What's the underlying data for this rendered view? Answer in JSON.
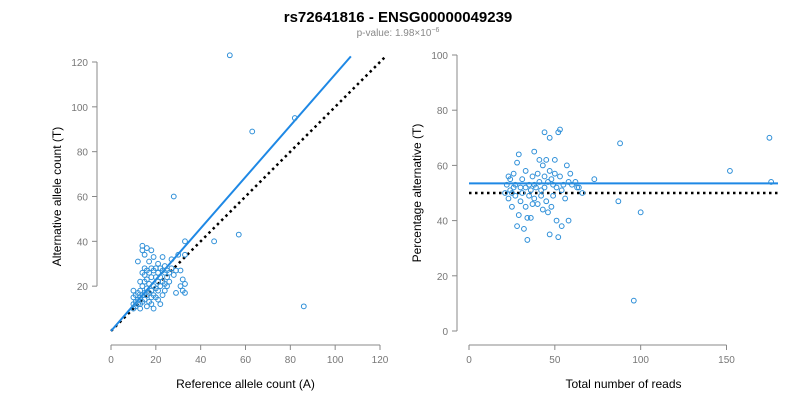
{
  "figure": {
    "title": "rs72641816 - ENSG00000049239",
    "subtitle_prefix": "p-value: 1.98×10",
    "subtitle_exponent": "−6"
  },
  "colors": {
    "points": "#2e8fd8",
    "fit_line": "#1e88e5",
    "reference_line": "#000000"
  },
  "chart_data": [
    {
      "type": "scatter",
      "xlabel": "Reference allele count (A)",
      "ylabel": "Alternative allele count (T)",
      "xlim": [
        0,
        120
      ],
      "ylim": [
        0,
        120
      ],
      "xticks": [
        0,
        20,
        40,
        60,
        80,
        100,
        120
      ],
      "yticks": [
        20,
        40,
        60,
        80,
        100,
        120
      ],
      "fit_line": [
        [
          0,
          0
        ],
        [
          107,
          122.5
        ]
      ],
      "reference_line": [
        [
          0,
          0
        ],
        [
          122,
          122
        ]
      ],
      "points": [
        [
          10,
          10
        ],
        [
          10,
          12
        ],
        [
          11,
          11
        ],
        [
          11,
          13
        ],
        [
          10,
          15
        ],
        [
          11,
          16
        ],
        [
          10,
          18
        ],
        [
          12,
          12
        ],
        [
          12,
          14
        ],
        [
          12,
          17
        ],
        [
          13,
          10
        ],
        [
          13,
          12
        ],
        [
          13,
          15
        ],
        [
          13,
          18
        ],
        [
          13,
          22
        ],
        [
          12,
          31
        ],
        [
          14,
          13
        ],
        [
          14,
          16
        ],
        [
          14,
          20
        ],
        [
          14,
          26
        ],
        [
          14,
          36
        ],
        [
          14,
          38
        ],
        [
          15,
          14
        ],
        [
          15,
          17
        ],
        [
          15,
          22
        ],
        [
          15,
          25
        ],
        [
          15,
          28
        ],
        [
          15,
          34
        ],
        [
          16,
          11
        ],
        [
          16,
          16
        ],
        [
          16,
          19
        ],
        [
          16,
          23
        ],
        [
          16,
          27
        ],
        [
          16,
          37
        ],
        [
          17,
          13
        ],
        [
          17,
          17
        ],
        [
          17,
          21
        ],
        [
          17,
          26
        ],
        [
          17,
          31
        ],
        [
          18,
          12
        ],
        [
          18,
          15
        ],
        [
          18,
          18
        ],
        [
          18,
          24
        ],
        [
          18,
          28
        ],
        [
          18,
          36
        ],
        [
          19,
          10
        ],
        [
          19,
          16
        ],
        [
          19,
          20
        ],
        [
          19,
          27
        ],
        [
          19,
          33
        ],
        [
          20,
          15
        ],
        [
          20,
          19
        ],
        [
          20,
          24
        ],
        [
          20,
          28
        ],
        [
          21,
          14
        ],
        [
          21,
          18
        ],
        [
          21,
          22
        ],
        [
          21,
          26
        ],
        [
          21,
          30
        ],
        [
          22,
          12
        ],
        [
          22,
          20
        ],
        [
          22,
          24
        ],
        [
          22,
          28
        ],
        [
          23,
          16
        ],
        [
          23,
          22
        ],
        [
          23,
          27
        ],
        [
          23,
          33
        ],
        [
          24,
          18
        ],
        [
          24,
          21
        ],
        [
          24,
          26
        ],
        [
          24,
          29
        ],
        [
          25,
          20
        ],
        [
          25,
          24
        ],
        [
          25,
          27
        ],
        [
          26,
          22
        ],
        [
          26,
          26
        ],
        [
          27,
          28
        ],
        [
          27,
          32
        ],
        [
          28,
          25
        ],
        [
          28,
          60
        ],
        [
          29,
          17
        ],
        [
          29,
          27
        ],
        [
          30,
          34
        ],
        [
          31,
          20
        ],
        [
          31,
          27
        ],
        [
          32,
          18
        ],
        [
          32,
          23
        ],
        [
          33,
          17
        ],
        [
          33,
          21
        ],
        [
          33,
          34
        ],
        [
          33,
          40
        ],
        [
          46,
          40
        ],
        [
          53,
          123
        ],
        [
          57,
          43
        ],
        [
          63,
          89
        ],
        [
          82,
          95
        ],
        [
          86,
          11
        ]
      ]
    },
    {
      "type": "scatter",
      "xlabel": "Total number of reads",
      "ylabel": "Percentage alternative (T)",
      "xlim": [
        0,
        180
      ],
      "ylim": [
        0,
        100
      ],
      "xticks": [
        0,
        50,
        100,
        150
      ],
      "yticks": [
        0,
        20,
        40,
        60,
        80,
        100
      ],
      "fit_line": [
        [
          0,
          53.5
        ],
        [
          180,
          53.5
        ]
      ],
      "reference_line": [
        [
          0,
          50
        ],
        [
          180,
          50
        ]
      ],
      "points": [
        [
          21,
          50
        ],
        [
          22,
          53
        ],
        [
          23,
          56
        ],
        [
          23,
          48
        ],
        [
          24,
          51
        ],
        [
          24,
          55
        ],
        [
          25,
          50
        ],
        [
          25,
          45
        ],
        [
          26,
          52
        ],
        [
          26,
          57
        ],
        [
          27,
          49
        ],
        [
          27,
          53
        ],
        [
          28,
          61
        ],
        [
          28,
          38
        ],
        [
          29,
          64
        ],
        [
          29,
          42
        ],
        [
          30,
          52
        ],
        [
          30,
          47
        ],
        [
          31,
          55
        ],
        [
          31,
          50
        ],
        [
          32,
          37
        ],
        [
          33,
          58
        ],
        [
          33,
          52
        ],
        [
          33,
          45
        ],
        [
          34,
          41
        ],
        [
          34,
          33
        ],
        [
          35,
          53
        ],
        [
          35,
          49
        ],
        [
          36,
          51
        ],
        [
          36,
          41
        ],
        [
          37,
          56
        ],
        [
          37,
          46
        ],
        [
          38,
          65
        ],
        [
          38,
          53
        ],
        [
          38,
          48
        ],
        [
          39,
          52
        ],
        [
          40,
          57
        ],
        [
          40,
          46
        ],
        [
          41,
          54
        ],
        [
          41,
          62
        ],
        [
          42,
          51
        ],
        [
          42,
          49
        ],
        [
          43,
          60
        ],
        [
          43,
          44
        ],
        [
          44,
          72
        ],
        [
          44,
          56
        ],
        [
          44,
          52
        ],
        [
          45,
          62
        ],
        [
          45,
          47
        ],
        [
          46,
          54
        ],
        [
          46,
          43
        ],
        [
          47,
          70
        ],
        [
          47,
          58
        ],
        [
          47,
          35
        ],
        [
          48,
          55
        ],
        [
          48,
          45
        ],
        [
          49,
          53
        ],
        [
          49,
          49
        ],
        [
          50,
          62
        ],
        [
          50,
          57
        ],
        [
          51,
          52
        ],
        [
          51,
          40
        ],
        [
          52,
          72
        ],
        [
          52,
          34
        ],
        [
          53,
          73
        ],
        [
          53,
          56
        ],
        [
          54,
          51
        ],
        [
          54,
          38
        ],
        [
          55,
          53
        ],
        [
          56,
          48
        ],
        [
          57,
          60
        ],
        [
          58,
          54
        ],
        [
          58,
          40
        ],
        [
          59,
          57
        ],
        [
          60,
          53
        ],
        [
          62,
          54
        ],
        [
          63,
          52
        ],
        [
          64,
          52
        ],
        [
          66,
          50
        ],
        [
          73,
          55
        ],
        [
          87,
          47
        ],
        [
          88,
          68
        ],
        [
          96,
          11
        ],
        [
          100,
          43
        ],
        [
          152,
          58
        ],
        [
          175,
          70
        ],
        [
          176,
          54
        ]
      ]
    }
  ]
}
